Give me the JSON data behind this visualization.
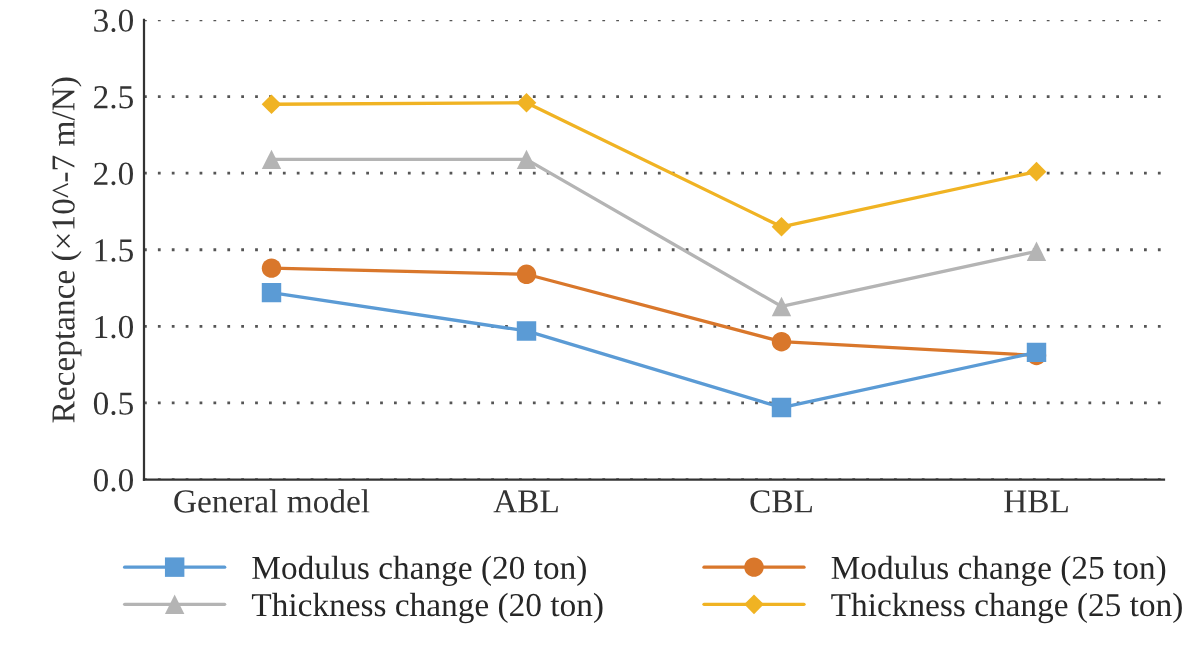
{
  "chart_data": {
    "type": "line",
    "ylabel": "Receptance (×10^-7 m/N)",
    "categories": [
      "General model",
      "ABL",
      "CBL",
      "HBL"
    ],
    "series": [
      {
        "name": "Modulus change (20 ton)",
        "color": "#5b9bd5",
        "marker": "square",
        "values": [
          1.22,
          0.97,
          0.47,
          0.83
        ]
      },
      {
        "name": "Modulus change (25 ton)",
        "color": "#d9772b",
        "marker": "circle",
        "values": [
          1.38,
          1.34,
          0.9,
          0.81
        ]
      },
      {
        "name": "Thickness change (20 ton)",
        "color": "#b4b4b4",
        "marker": "triangle",
        "values": [
          2.09,
          2.09,
          1.13,
          1.49
        ]
      },
      {
        "name": "Thickness change (25 ton)",
        "color": "#f0b323",
        "marker": "diamond",
        "values": [
          2.45,
          2.46,
          1.65,
          2.01
        ]
      }
    ],
    "ylim": [
      0,
      3
    ],
    "yticks": [
      {
        "value": 0,
        "label": "0.0"
      },
      {
        "value": 0.5,
        "label": "0.5"
      },
      {
        "value": 1,
        "label": "1.0"
      },
      {
        "value": 1.5,
        "label": "1.5"
      },
      {
        "value": 2,
        "label": "2.0"
      },
      {
        "value": 2.5,
        "label": "2.5"
      },
      {
        "value": 3,
        "label": "3.0"
      }
    ],
    "grid": "y",
    "legend": "bottom",
    "line_style": "solid"
  }
}
